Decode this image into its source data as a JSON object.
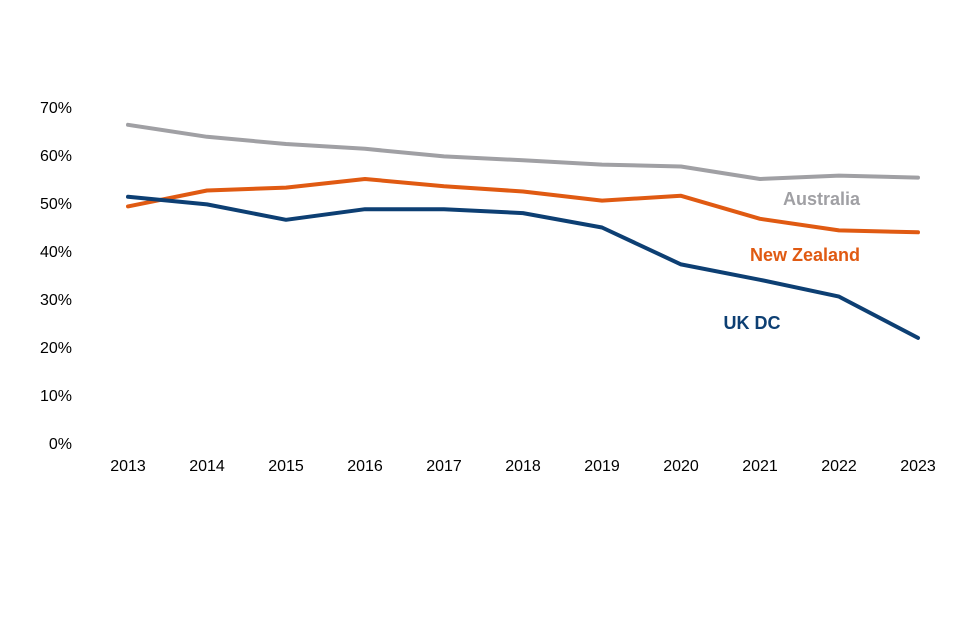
{
  "chart_data": {
    "type": "line",
    "title": "",
    "xlabel": "",
    "ylabel": "",
    "ylim": [
      0,
      0.7
    ],
    "grid": false,
    "x": [
      "2013",
      "2014",
      "2015",
      "2016",
      "2017",
      "2018",
      "2019",
      "2020",
      "2021",
      "2022",
      "2023"
    ],
    "y_ticks": [
      "0%",
      "10%",
      "20%",
      "30%",
      "40%",
      "50%",
      "60%",
      "70%"
    ],
    "y_tick_values": [
      0,
      0.1,
      0.2,
      0.3,
      0.4,
      0.5,
      0.6,
      0.7
    ],
    "series": [
      {
        "name": "Australia",
        "color": "#A0A0A4",
        "values": [
          0.663,
          0.638,
          0.623,
          0.613,
          0.597,
          0.589,
          0.58,
          0.576,
          0.55,
          0.557,
          0.553
        ]
      },
      {
        "name": "New Zealand",
        "color": "#E05A12",
        "values": [
          0.493,
          0.526,
          0.532,
          0.55,
          0.535,
          0.524,
          0.505,
          0.515,
          0.467,
          0.443,
          0.439
        ]
      },
      {
        "name": "UK DC",
        "color": "#0D3F73",
        "values": [
          0.513,
          0.497,
          0.465,
          0.487,
          0.487,
          0.479,
          0.449,
          0.372,
          0.34,
          0.305,
          0.219
        ]
      }
    ]
  }
}
